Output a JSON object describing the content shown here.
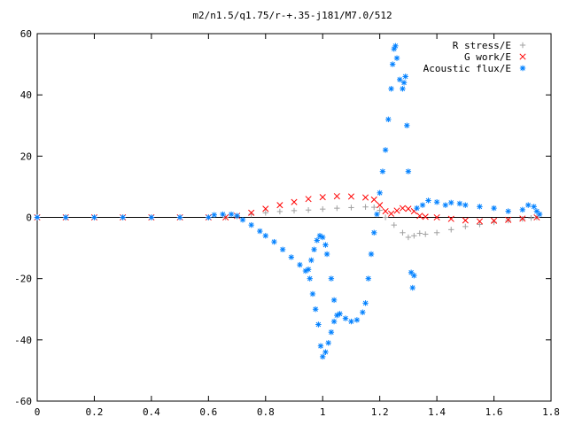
{
  "chart_data": {
    "type": "scatter",
    "title": "m2/n1.5/q1.75/r-+.35-j181/M7.0/512",
    "xlabel": "",
    "ylabel": "",
    "xlim": [
      0,
      1.8
    ],
    "ylim": [
      -60,
      60
    ],
    "x_ticks": [
      "0",
      "0.2",
      "0.4",
      "0.6",
      "0.8",
      "1",
      "1.2",
      "1.4",
      "1.6",
      "1.8"
    ],
    "y_ticks": [
      "60",
      "40",
      "20",
      "0",
      "-20",
      "-40",
      "-60"
    ],
    "grid": false,
    "legend_position": "top-right",
    "series": [
      {
        "name": "R stress/E",
        "color": "#a0a0a0",
        "marker": "plus",
        "points": [
          [
            0.0,
            0
          ],
          [
            0.1,
            0
          ],
          [
            0.2,
            0
          ],
          [
            0.3,
            0
          ],
          [
            0.4,
            0
          ],
          [
            0.5,
            0
          ],
          [
            0.6,
            0
          ],
          [
            0.66,
            0
          ],
          [
            0.7,
            0.3
          ],
          [
            0.75,
            1.0
          ],
          [
            0.8,
            1.5
          ],
          [
            0.85,
            1.9
          ],
          [
            0.9,
            2.2
          ],
          [
            0.95,
            2.4
          ],
          [
            1.0,
            2.7
          ],
          [
            1.05,
            3.0
          ],
          [
            1.1,
            3.2
          ],
          [
            1.15,
            3.4
          ],
          [
            1.18,
            3.3
          ],
          [
            1.2,
            2.3
          ],
          [
            1.22,
            0.0
          ],
          [
            1.25,
            -2.5
          ],
          [
            1.28,
            -5.0
          ],
          [
            1.3,
            -6.5
          ],
          [
            1.32,
            -6.0
          ],
          [
            1.34,
            -5.2
          ],
          [
            1.36,
            -5.5
          ],
          [
            1.4,
            -5.0
          ],
          [
            1.45,
            -4.0
          ],
          [
            1.5,
            -3.0
          ],
          [
            1.55,
            -2.3
          ],
          [
            1.6,
            -1.6
          ],
          [
            1.65,
            -1.0
          ],
          [
            1.7,
            -0.5
          ],
          [
            1.73,
            -0.2
          ],
          [
            1.75,
            0.0
          ]
        ]
      },
      {
        "name": "G work/E",
        "color": "#ff0000",
        "marker": "cross",
        "points": [
          [
            0.0,
            0
          ],
          [
            0.1,
            0
          ],
          [
            0.2,
            0
          ],
          [
            0.3,
            0
          ],
          [
            0.4,
            0
          ],
          [
            0.5,
            0
          ],
          [
            0.6,
            0
          ],
          [
            0.66,
            0
          ],
          [
            0.7,
            0.5
          ],
          [
            0.75,
            1.5
          ],
          [
            0.8,
            2.8
          ],
          [
            0.85,
            4.0
          ],
          [
            0.9,
            5.0
          ],
          [
            0.95,
            6.0
          ],
          [
            1.0,
            6.6
          ],
          [
            1.05,
            6.9
          ],
          [
            1.1,
            6.8
          ],
          [
            1.15,
            6.5
          ],
          [
            1.18,
            5.8
          ],
          [
            1.2,
            4.0
          ],
          [
            1.22,
            2.0
          ],
          [
            1.24,
            1.2
          ],
          [
            1.26,
            2.2
          ],
          [
            1.28,
            3.0
          ],
          [
            1.3,
            2.8
          ],
          [
            1.32,
            2.0
          ],
          [
            1.34,
            0.5
          ],
          [
            1.36,
            0.2
          ],
          [
            1.4,
            0.0
          ],
          [
            1.45,
            -0.5
          ],
          [
            1.5,
            -1.0
          ],
          [
            1.55,
            -1.3
          ],
          [
            1.6,
            -1.1
          ],
          [
            1.65,
            -0.8
          ],
          [
            1.7,
            -0.4
          ],
          [
            1.75,
            0.0
          ]
        ]
      },
      {
        "name": "Acoustic flux/E",
        "color": "#0080ff",
        "marker": "star",
        "points": [
          [
            0.0,
            0
          ],
          [
            0.1,
            0
          ],
          [
            0.2,
            0
          ],
          [
            0.3,
            0
          ],
          [
            0.4,
            0
          ],
          [
            0.5,
            0
          ],
          [
            0.6,
            0
          ],
          [
            0.62,
            0.8
          ],
          [
            0.65,
            1.0
          ],
          [
            0.68,
            1.0
          ],
          [
            0.7,
            0.5
          ],
          [
            0.72,
            -0.8
          ],
          [
            0.75,
            -2.5
          ],
          [
            0.78,
            -4.5
          ],
          [
            0.8,
            -6.0
          ],
          [
            0.83,
            -8.0
          ],
          [
            0.86,
            -10.5
          ],
          [
            0.89,
            -13.0
          ],
          [
            0.92,
            -15.5
          ],
          [
            0.94,
            -17.5
          ],
          [
            0.95,
            -17.0
          ],
          [
            0.96,
            -14.0
          ],
          [
            0.97,
            -10.5
          ],
          [
            0.98,
            -7.5
          ],
          [
            0.99,
            -6.0
          ],
          [
            1.0,
            -6.5
          ],
          [
            1.01,
            -9.0
          ],
          [
            1.015,
            -12.0
          ],
          [
            0.955,
            -20.0
          ],
          [
            0.965,
            -25.0
          ],
          [
            0.975,
            -30.0
          ],
          [
            0.985,
            -35.0
          ],
          [
            0.993,
            -42.0
          ],
          [
            1.0,
            -45.5
          ],
          [
            1.01,
            -44.0
          ],
          [
            1.02,
            -41.0
          ],
          [
            1.03,
            -37.5
          ],
          [
            1.04,
            -34.0
          ],
          [
            1.05,
            -32.0
          ],
          [
            1.06,
            -31.5
          ],
          [
            1.03,
            -20.0
          ],
          [
            1.04,
            -27.0
          ],
          [
            1.08,
            -33.0
          ],
          [
            1.1,
            -34.0
          ],
          [
            1.12,
            -33.5
          ],
          [
            1.14,
            -31.0
          ],
          [
            1.15,
            -28.0
          ],
          [
            1.16,
            -20.0
          ],
          [
            1.17,
            -12.0
          ],
          [
            1.18,
            -5.0
          ],
          [
            1.19,
            1.0
          ],
          [
            1.2,
            8.0
          ],
          [
            1.21,
            15.0
          ],
          [
            1.22,
            22.0
          ],
          [
            1.23,
            32.0
          ],
          [
            1.24,
            42.0
          ],
          [
            1.245,
            50.0
          ],
          [
            1.25,
            55.0
          ],
          [
            1.255,
            56.0
          ],
          [
            1.26,
            52.0
          ],
          [
            1.27,
            45.0
          ],
          [
            1.28,
            42.0
          ],
          [
            1.285,
            44.0
          ],
          [
            1.29,
            46.0
          ],
          [
            1.295,
            30.0
          ],
          [
            1.3,
            15.0
          ],
          [
            1.31,
            -18.0
          ],
          [
            1.315,
            -23.0
          ],
          [
            1.32,
            -19.0
          ],
          [
            1.33,
            3.0
          ],
          [
            1.35,
            4.0
          ],
          [
            1.37,
            5.5
          ],
          [
            1.4,
            5.0
          ],
          [
            1.43,
            4.0
          ],
          [
            1.45,
            4.8
          ],
          [
            1.48,
            4.5
          ],
          [
            1.5,
            4.0
          ],
          [
            1.55,
            3.5
          ],
          [
            1.6,
            3.0
          ],
          [
            1.65,
            2.0
          ],
          [
            1.7,
            2.5
          ],
          [
            1.72,
            4.0
          ],
          [
            1.74,
            3.5
          ],
          [
            1.75,
            2.0
          ],
          [
            1.76,
            1.0
          ]
        ]
      }
    ]
  }
}
